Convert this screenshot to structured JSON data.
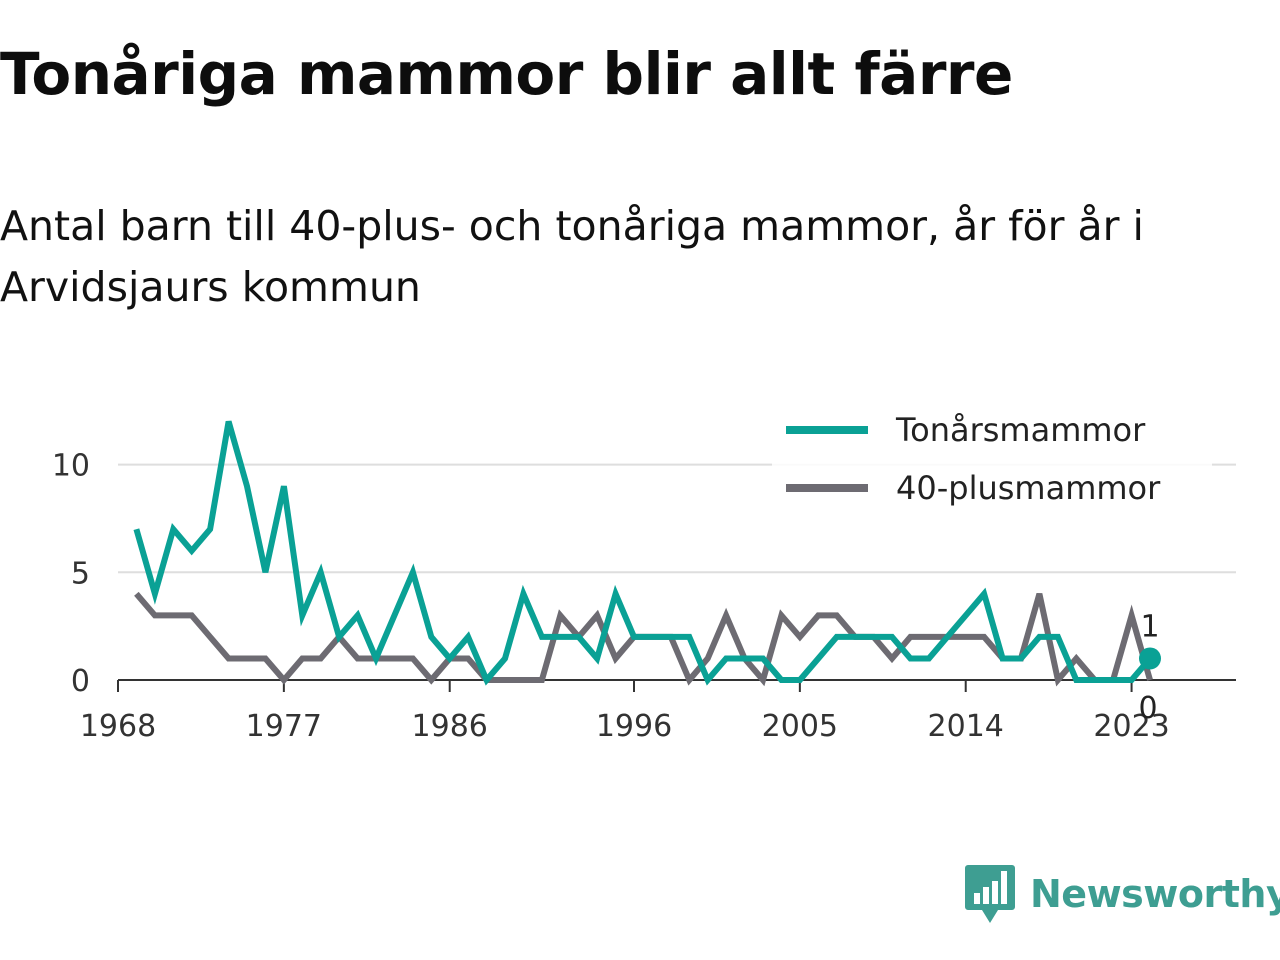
{
  "title": "Tonåriga mammor blir allt färre",
  "subtitle": "Antal barn till 40-plus- och tonåriga mammor, år för år i Arvidsjaurs kommun",
  "brand": {
    "name": "Newsworthy",
    "icon": "newsworthy-logo-icon",
    "color": "#3e9e92"
  },
  "chart_data": {
    "type": "line",
    "x": [
      1969,
      1970,
      1971,
      1972,
      1973,
      1974,
      1975,
      1976,
      1977,
      1978,
      1979,
      1980,
      1981,
      1982,
      1983,
      1984,
      1985,
      1986,
      1987,
      1988,
      1989,
      1990,
      1991,
      1992,
      1993,
      1994,
      1995,
      1996,
      1997,
      1998,
      1999,
      2000,
      2001,
      2002,
      2003,
      2004,
      2005,
      2006,
      2007,
      2008,
      2009,
      2010,
      2011,
      2012,
      2013,
      2014,
      2015,
      2016,
      2017,
      2018,
      2019,
      2020,
      2021,
      2022,
      2023,
      2024
    ],
    "series": [
      {
        "name": "Tonårsmammor",
        "color": "#0aa195",
        "end_label": "1",
        "values": [
          7,
          4,
          7,
          6,
          7,
          12,
          9,
          5,
          9,
          3,
          5,
          2,
          3,
          1,
          3,
          5,
          2,
          1,
          2,
          0,
          1,
          4,
          2,
          2,
          2,
          1,
          4,
          2,
          2,
          2,
          2,
          0,
          1,
          1,
          1,
          0,
          0,
          1,
          2,
          2,
          2,
          2,
          1,
          1,
          2,
          3,
          4,
          1,
          1,
          2,
          2,
          0,
          0,
          0,
          0,
          1
        ]
      },
      {
        "name": "40-plusmammor",
        "color": "#6d6b72",
        "end_label": "0",
        "values": [
          4,
          3,
          3,
          3,
          2,
          1,
          1,
          1,
          0,
          1,
          1,
          2,
          1,
          1,
          1,
          1,
          0,
          1,
          1,
          0,
          0,
          0,
          0,
          3,
          2,
          3,
          1,
          2,
          2,
          2,
          0,
          1,
          3,
          1,
          0,
          3,
          2,
          3,
          3,
          2,
          2,
          1,
          2,
          2,
          2,
          2,
          2,
          1,
          1,
          4,
          0,
          1,
          0,
          0,
          3,
          0
        ]
      }
    ],
    "x_ticks": [
      "1968",
      "1977",
      "1986",
      "1996",
      "2005",
      "2014",
      "2023"
    ],
    "y_ticks": [
      "0",
      "5",
      "10"
    ],
    "xlim": [
      1968,
      2024
    ],
    "ylim": [
      0,
      13
    ],
    "grid": "horizontal",
    "legend_position": "top-right"
  }
}
